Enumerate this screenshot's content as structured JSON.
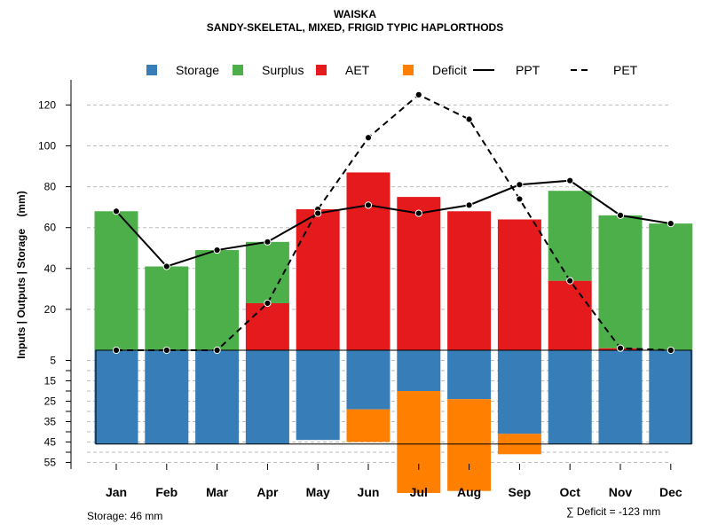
{
  "chart_data": {
    "type": "bar",
    "title": "WAISKA",
    "subtitle": "SANDY-SKELETAL, MIXED, FRIGID TYPIC HAPLORTHODS",
    "ylabel": "Inputs | Outputs | Storage    (mm)",
    "categories": [
      "Jan",
      "Feb",
      "Mar",
      "Apr",
      "May",
      "Jun",
      "Jul",
      "Aug",
      "Sep",
      "Oct",
      "Nov",
      "Dec"
    ],
    "upper_ticks": [
      20,
      40,
      60,
      80,
      100,
      120
    ],
    "lower_ticks": [
      5,
      15,
      25,
      35,
      45,
      55
    ],
    "ylim_upper": [
      0,
      130
    ],
    "ylim_lower": [
      0,
      55
    ],
    "legend": [
      {
        "label": "Storage",
        "kind": "box",
        "color": "#377EB8"
      },
      {
        "label": "Surplus",
        "kind": "box",
        "color": "#4DAF4A"
      },
      {
        "label": "AET",
        "kind": "box",
        "color": "#E41A1C"
      },
      {
        "label": "Deficit",
        "kind": "box",
        "color": "#FF7F00"
      },
      {
        "label": "PPT",
        "kind": "solid",
        "color": "#000000"
      },
      {
        "label": "PET",
        "kind": "dashed",
        "color": "#000000"
      }
    ],
    "series": [
      {
        "name": "AET",
        "values": [
          0,
          0,
          0,
          23,
          69,
          87,
          75,
          68,
          64,
          34,
          1,
          0
        ]
      },
      {
        "name": "Surplus",
        "values": [
          68,
          41,
          49,
          30,
          0,
          0,
          0,
          0,
          0,
          44,
          65,
          62
        ]
      },
      {
        "name": "Storage",
        "values": [
          46,
          46,
          46,
          46,
          44,
          29,
          20,
          24,
          41,
          46,
          46,
          46
        ]
      },
      {
        "name": "Deficit",
        "values": [
          0,
          0,
          0,
          0,
          0,
          16,
          50,
          45,
          10,
          0,
          0,
          0
        ]
      },
      {
        "name": "PPT",
        "values": [
          68,
          41,
          49,
          53,
          67,
          71,
          67,
          71,
          81,
          83,
          66,
          62
        ]
      },
      {
        "name": "PET",
        "values": [
          0,
          0,
          0,
          23,
          69,
          104,
          125,
          113,
          74,
          34,
          1,
          0
        ]
      }
    ],
    "storage_capacity": 46,
    "colors": {
      "storage": "#377EB8",
      "surplus": "#4DAF4A",
      "aet": "#E41A1C",
      "deficit": "#FF7F00"
    }
  },
  "footer": {
    "storage_label": "Storage: 46 mm",
    "deficit_label": "∑ Deficit = -123 mm"
  }
}
